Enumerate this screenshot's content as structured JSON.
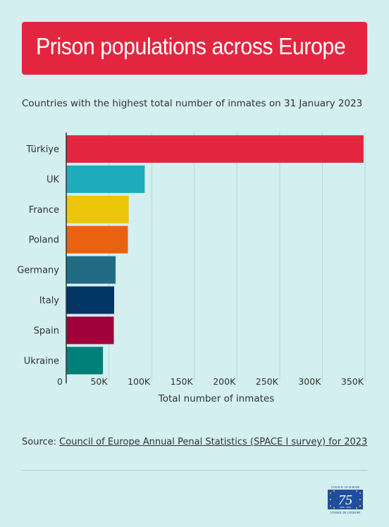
{
  "title": "Prison populations across Europe",
  "subtitle": "Countries with the highest total number of inmates on 31 January 2023",
  "source": {
    "prefix": "Source:",
    "link_text": "Council of Europe Annual Penal Statistics (SPACE I survey) for 2023"
  },
  "logo": {
    "top_text": "COUNCIL OF EUROPE",
    "number": "75",
    "years": "1949 - 2024",
    "bottom_text": "CONSEIL DE L'EUROPE"
  },
  "chart_data": {
    "type": "bar",
    "orientation": "horizontal",
    "categories": [
      "Türkiye",
      "UK",
      "France",
      "Poland",
      "Germany",
      "Italy",
      "Spain",
      "Ukraine"
    ],
    "values": [
      348265,
      91908,
      73162,
      72237,
      57806,
      56127,
      55721,
      43012
    ],
    "colors": [
      "#e32640",
      "#1eabbb",
      "#ebc60a",
      "#e96210",
      "#226b84",
      "#023563",
      "#a10038",
      "#01807a"
    ],
    "xlabel": "Total number of inmates",
    "xlim": [
      0,
      350000
    ],
    "xticks": [
      0,
      50000,
      100000,
      150000,
      200000,
      250000,
      300000,
      350000
    ],
    "xtick_labels": [
      "0",
      "50K",
      "100K",
      "150K",
      "200K",
      "250K",
      "300K",
      "350K"
    ],
    "grid": "vertical"
  }
}
